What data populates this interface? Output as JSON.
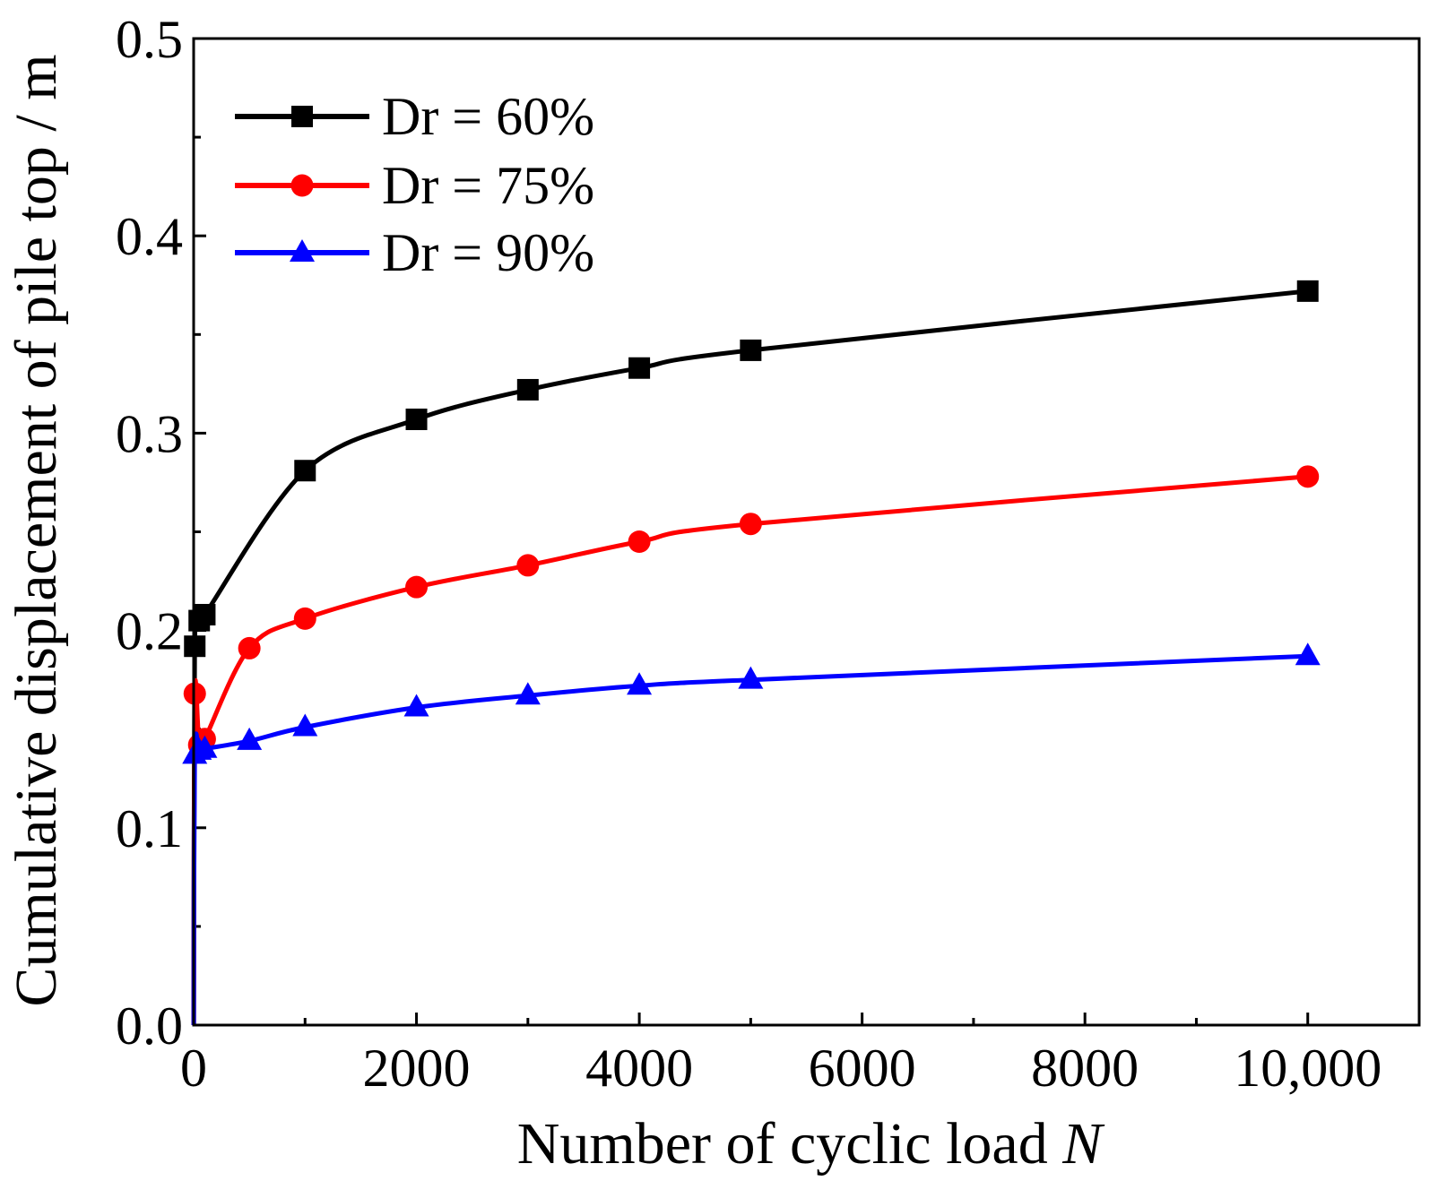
{
  "chart_data": {
    "type": "line",
    "title": "",
    "xlabel_prefix": "Number of cyclic load ",
    "xlabel_var": "N",
    "ylabel": "Cumulative displacement of pile top / m",
    "xlim": [
      0,
      11000
    ],
    "ylim": [
      0,
      0.5
    ],
    "x_ticks": [
      0,
      2000,
      4000,
      6000,
      8000,
      10000
    ],
    "x_tick_labels": [
      "0",
      "2000",
      "4000",
      "6000",
      "8000",
      "10,000"
    ],
    "x_minor_ticks": [
      1000,
      3000,
      5000,
      7000,
      9000
    ],
    "y_ticks": [
      0,
      0.1,
      0.2,
      0.3,
      0.4,
      0.5
    ],
    "y_tick_labels": [
      "0.0",
      "0.1",
      "0.2",
      "0.3",
      "0.4",
      "0.5"
    ],
    "y_minor_ticks": [
      0.05,
      0.15,
      0.25,
      0.35,
      0.45
    ],
    "grid": false,
    "legend_position": "top-left",
    "series": [
      {
        "name": "Dr = 60%",
        "color": "#000000",
        "marker": "square",
        "x": [
          1,
          10,
          50,
          100,
          1000,
          2000,
          3000,
          4000,
          5000,
          10000
        ],
        "values": [
          0.0,
          0.192,
          0.205,
          0.208,
          0.281,
          0.307,
          0.322,
          0.333,
          0.342,
          0.372
        ]
      },
      {
        "name": "Dr = 75%",
        "color": "#ff0000",
        "marker": "circle",
        "x": [
          1,
          10,
          50,
          100,
          500,
          1000,
          2000,
          3000,
          4000,
          5000,
          10000
        ],
        "values": [
          0.0,
          0.168,
          0.142,
          0.145,
          0.191,
          0.206,
          0.222,
          0.233,
          0.245,
          0.254,
          0.278
        ]
      },
      {
        "name": "Dr = 90%",
        "color": "#0000ff",
        "marker": "triangle",
        "x": [
          1,
          10,
          50,
          100,
          500,
          1000,
          2000,
          3000,
          4000,
          5000,
          10000
        ],
        "values": [
          0.0,
          0.137,
          0.139,
          0.14,
          0.144,
          0.151,
          0.161,
          0.167,
          0.172,
          0.175,
          0.187
        ]
      }
    ]
  }
}
